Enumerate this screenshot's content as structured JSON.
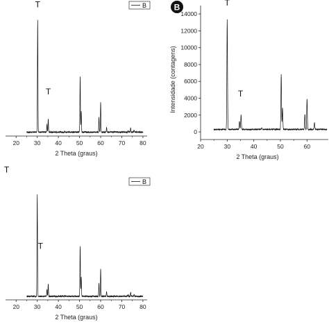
{
  "chart_data": [
    {
      "type": "line",
      "panel": "top-left",
      "xlabel": "2 Theta (graus)",
      "ylabel": "",
      "xlim": [
        15,
        82
      ],
      "ylim": [
        0,
        15000
      ],
      "x_ticks": [
        20,
        30,
        40,
        50,
        60,
        70,
        80
      ],
      "y_ticks": [],
      "legend": "B",
      "legend_position": "top-right",
      "annotations": [
        {
          "text": "T",
          "x": 30.2,
          "y": 14800
        },
        {
          "text": "T",
          "x": 35.2,
          "y": 4800
        }
      ],
      "baseline": 450,
      "peaks": [
        {
          "x": 30.2,
          "y": 13400
        },
        {
          "x": 34.6,
          "y": 1350
        },
        {
          "x": 35.2,
          "y": 2000
        },
        {
          "x": 43.0,
          "y": 550
        },
        {
          "x": 50.3,
          "y": 6850
        },
        {
          "x": 50.8,
          "y": 2900
        },
        {
          "x": 59.2,
          "y": 2100
        },
        {
          "x": 60.0,
          "y": 3900
        },
        {
          "x": 62.8,
          "y": 1000
        },
        {
          "x": 73.0,
          "y": 650
        },
        {
          "x": 74.2,
          "y": 950
        },
        {
          "x": 75.8,
          "y": 650
        }
      ]
    },
    {
      "type": "line",
      "panel": "top-right",
      "badge": "B",
      "xlabel": "2 Theta (graus)",
      "ylabel": "Intensidade (contagens)",
      "xlim": [
        20,
        68
      ],
      "ylim": [
        -900,
        15000
      ],
      "x_ticks": [
        20,
        30,
        40,
        50,
        60
      ],
      "y_ticks": [
        0,
        2000,
        4000,
        6000,
        8000,
        10000,
        12000,
        14000
      ],
      "annotations": [
        {
          "text": "T",
          "x": 30.0,
          "y": 15000
        },
        {
          "text": "T",
          "x": 35.0,
          "y": 4200
        }
      ],
      "baseline": 300,
      "peaks": [
        {
          "x": 30.0,
          "y": 13400
        },
        {
          "x": 34.6,
          "y": 1300
        },
        {
          "x": 35.2,
          "y": 2000
        },
        {
          "x": 43.0,
          "y": 450
        },
        {
          "x": 50.3,
          "y": 6800
        },
        {
          "x": 50.8,
          "y": 2800
        },
        {
          "x": 59.2,
          "y": 2100
        },
        {
          "x": 60.0,
          "y": 3900
        },
        {
          "x": 62.8,
          "y": 1100
        }
      ]
    },
    {
      "type": "line",
      "panel": "bottom-left",
      "xlabel": "2 Theta (graus)",
      "ylabel": "",
      "xlim": [
        15,
        82
      ],
      "ylim": [
        0,
        15000
      ],
      "x_ticks": [
        20,
        30,
        40,
        50,
        60,
        70,
        80
      ],
      "y_ticks": [],
      "legend": "B",
      "legend_position": "top-right",
      "annotations": [
        {
          "text": "T",
          "x": 15.5,
          "y": 16200
        },
        {
          "text": "T",
          "x": 31.5,
          "y": 6500
        }
      ],
      "baseline": 450,
      "peaks": [
        {
          "x": 30.0,
          "y": 13400
        },
        {
          "x": 34.6,
          "y": 1350
        },
        {
          "x": 35.2,
          "y": 2000
        },
        {
          "x": 43.0,
          "y": 550
        },
        {
          "x": 50.3,
          "y": 6850
        },
        {
          "x": 50.8,
          "y": 2900
        },
        {
          "x": 59.2,
          "y": 2100
        },
        {
          "x": 60.0,
          "y": 3900
        },
        {
          "x": 62.8,
          "y": 1000
        },
        {
          "x": 73.0,
          "y": 650
        },
        {
          "x": 74.2,
          "y": 950
        },
        {
          "x": 75.8,
          "y": 650
        }
      ]
    }
  ]
}
